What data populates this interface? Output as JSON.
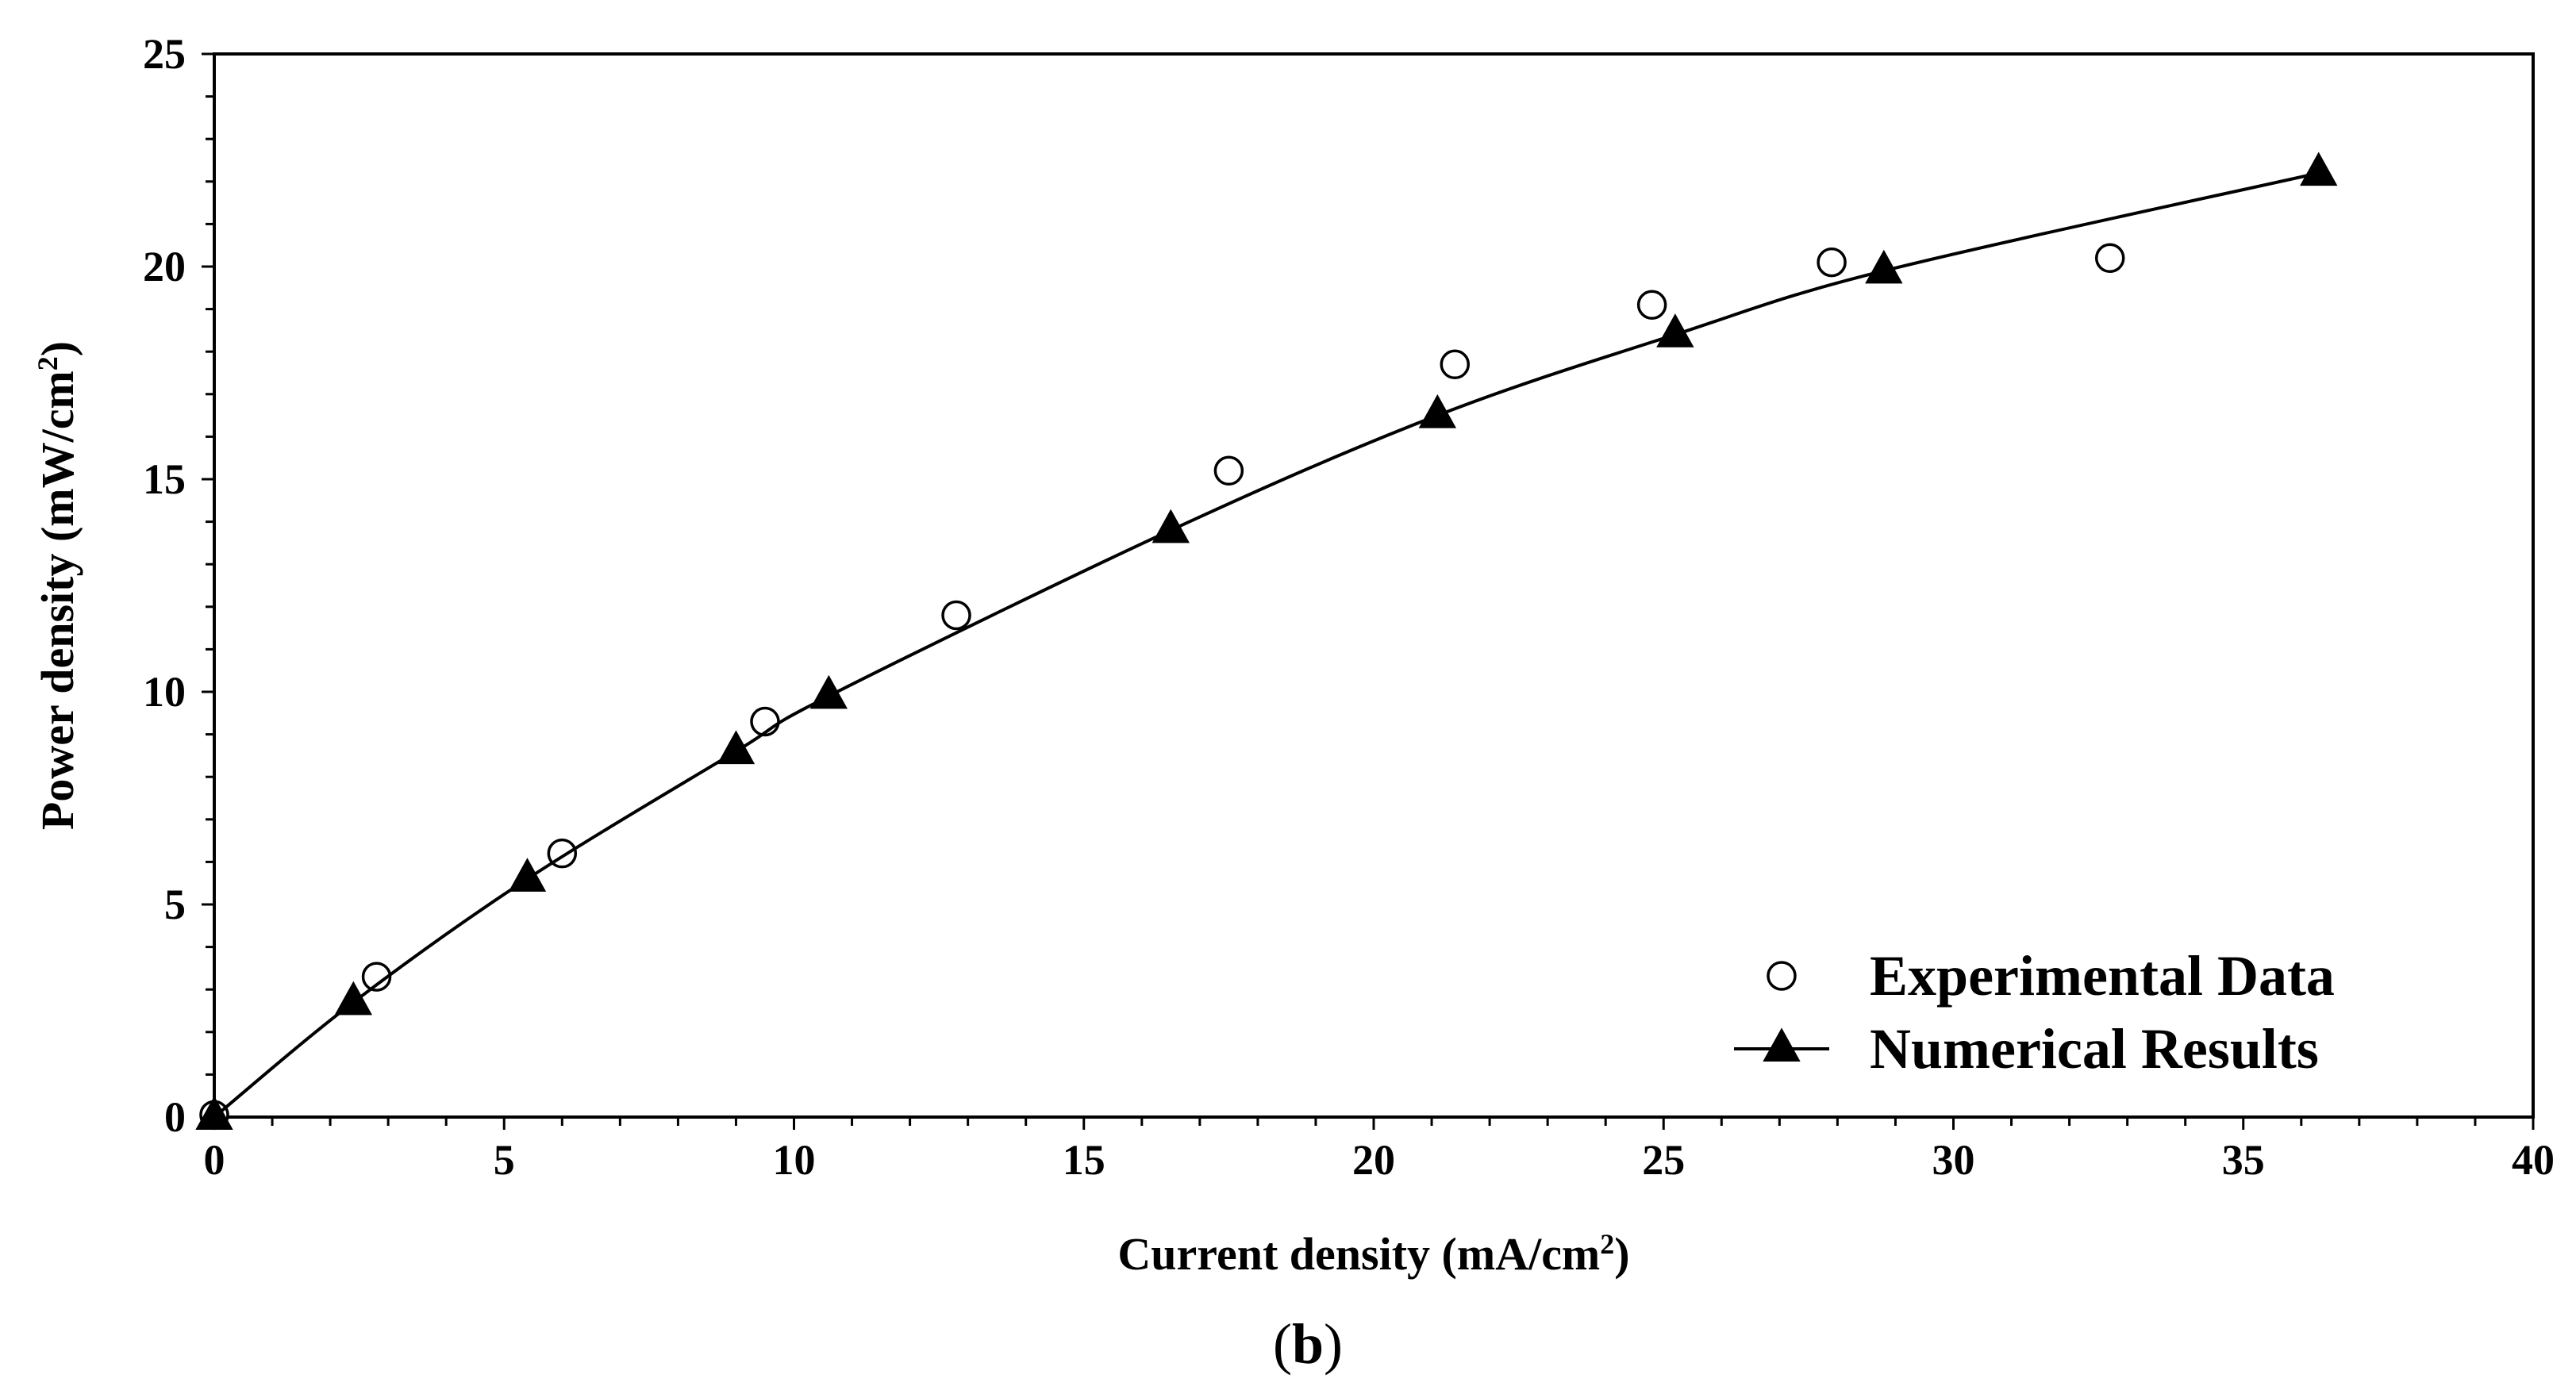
{
  "chart_data": {
    "type": "scatter",
    "title": "",
    "xlabel": "Current density (mA/cm²)",
    "xlabel_main": "Current density (mA/cm",
    "xlabel_sup": "2",
    "xlabel_tail": ")",
    "ylabel": "Power density (mW/cm²)",
    "ylabel_main": "Power density (mW/cm",
    "ylabel_sup": "2",
    "ylabel_tail": ")",
    "xlim": [
      0,
      40
    ],
    "ylim": [
      0,
      25
    ],
    "xticks": [
      0,
      5,
      10,
      15,
      20,
      25,
      30,
      35,
      40
    ],
    "yticks": [
      0,
      5,
      10,
      15,
      20,
      25
    ],
    "xtick_labels": [
      "0",
      "5",
      "10",
      "15",
      "20",
      "25",
      "30",
      "35",
      "40"
    ],
    "ytick_labels": [
      "0",
      "5",
      "10",
      "15",
      "20",
      "25"
    ],
    "grid": false,
    "legend_position": "bottom-right",
    "series": [
      {
        "name": "Experimental Data",
        "marker": "open-circle",
        "line": false,
        "x": [
          0,
          2.8,
          6.0,
          9.5,
          12.8,
          17.5,
          21.4,
          24.8,
          27.9,
          32.7
        ],
        "y": [
          0.05,
          3.3,
          6.2,
          9.3,
          11.8,
          15.2,
          17.7,
          19.1,
          20.1,
          20.2
        ]
      },
      {
        "name": "Numerical Results",
        "marker": "filled-triangle",
        "line": true,
        "x": [
          0,
          2.4,
          5.4,
          9.0,
          10.6,
          16.5,
          21.1,
          25.2,
          28.8,
          36.3
        ],
        "y": [
          0,
          2.7,
          5.6,
          8.6,
          9.9,
          13.8,
          16.5,
          18.4,
          19.9,
          22.2
        ]
      }
    ],
    "caption": "(b)",
    "caption_letter": "b",
    "caption_open": "(",
    "caption_close": ")",
    "colors": {
      "axis": "#000000",
      "marker": "#000000",
      "background": "#ffffff"
    }
  }
}
